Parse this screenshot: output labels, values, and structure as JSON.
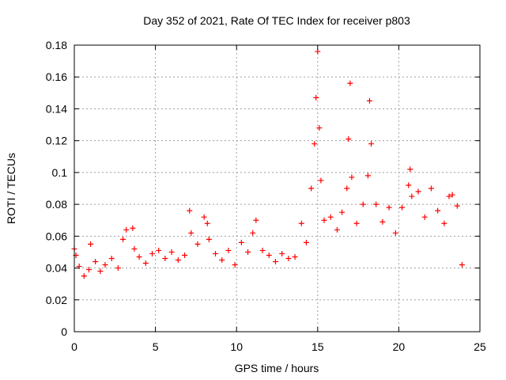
{
  "chart_data": {
    "type": "scatter",
    "title": "Day 352 of 2021, Rate Of TEC Index for receiver p803",
    "xlabel": "GPS time / hours",
    "ylabel": "ROTI / TECUs",
    "xlim": [
      0,
      25
    ],
    "ylim": [
      0,
      0.18
    ],
    "x_ticks": [
      "0",
      "5",
      "10",
      "15",
      "20",
      "25"
    ],
    "y_ticks": [
      "0",
      "0.02",
      "0.04",
      "0.06",
      "0.08",
      "0.1",
      "0.12",
      "0.14",
      "0.16",
      "0.18"
    ],
    "grid": true,
    "marker": "plus",
    "series": [
      {
        "color": "#ff0000",
        "x": [
          0.0,
          0.1,
          0.3,
          0.6,
          0.9,
          1.0,
          1.3,
          1.6,
          1.9,
          2.3,
          2.7,
          3.0,
          3.2,
          3.6,
          3.7,
          4.0,
          4.4,
          4.8,
          5.2,
          5.6,
          6.0,
          6.4,
          6.8,
          7.1,
          7.2,
          7.6,
          8.0,
          8.2,
          8.3,
          8.7,
          9.1,
          9.5,
          9.9,
          10.3,
          10.7,
          11.0,
          11.2,
          11.6,
          12.0,
          12.4,
          12.8,
          13.2,
          13.6,
          14.0,
          14.3,
          14.6,
          14.8,
          14.9,
          15.0,
          15.1,
          15.2,
          15.4,
          15.8,
          16.2,
          16.5,
          16.8,
          16.9,
          17.0,
          17.1,
          17.4,
          17.8,
          18.1,
          18.2,
          18.3,
          18.6,
          19.0,
          19.4,
          19.8,
          20.2,
          20.6,
          20.7,
          20.8,
          21.2,
          21.6,
          22.0,
          22.4,
          22.8,
          23.1,
          23.3,
          23.6,
          23.9
        ],
        "y": [
          0.052,
          0.048,
          0.041,
          0.035,
          0.039,
          0.055,
          0.044,
          0.038,
          0.042,
          0.046,
          0.04,
          0.058,
          0.064,
          0.065,
          0.052,
          0.047,
          0.043,
          0.049,
          0.051,
          0.046,
          0.05,
          0.045,
          0.048,
          0.076,
          0.062,
          0.055,
          0.072,
          0.068,
          0.058,
          0.049,
          0.045,
          0.051,
          0.042,
          0.056,
          0.05,
          0.062,
          0.07,
          0.051,
          0.048,
          0.044,
          0.049,
          0.046,
          0.047,
          0.068,
          0.056,
          0.09,
          0.118,
          0.147,
          0.176,
          0.128,
          0.095,
          0.07,
          0.072,
          0.064,
          0.075,
          0.09,
          0.121,
          0.156,
          0.097,
          0.068,
          0.08,
          0.098,
          0.145,
          0.118,
          0.08,
          0.069,
          0.078,
          0.062,
          0.078,
          0.092,
          0.102,
          0.085,
          0.088,
          0.072,
          0.09,
          0.076,
          0.068,
          0.085,
          0.086,
          0.079,
          0.042
        ]
      }
    ]
  }
}
